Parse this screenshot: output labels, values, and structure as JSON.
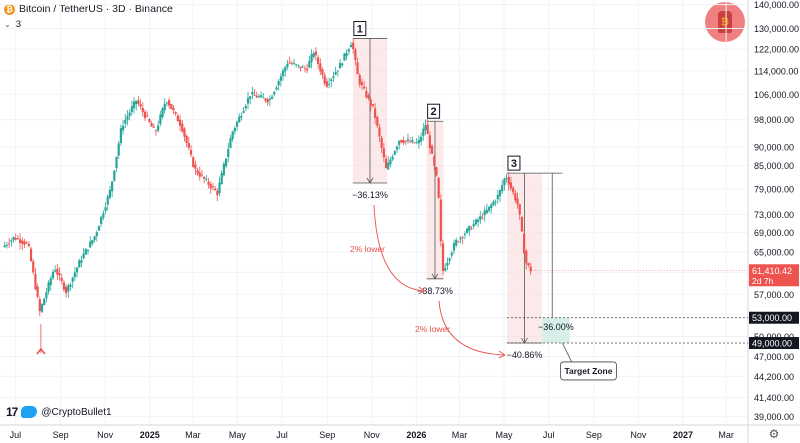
{
  "header": {
    "symbol_icon": "bitcoin-icon",
    "title": "Bitcoin / TetherUS · 3D · Binance",
    "indicator_count": "3"
  },
  "author": {
    "avatar_icon": "bitcoin-mascot-icon",
    "credit_handle": "@CryptoBullet1",
    "logo_icon": "tradingview-logo-icon",
    "social_icon": "twitter-icon"
  },
  "chart_data": {
    "type": "candlestick",
    "y_axis": {
      "scale": "log",
      "range": [
        38000,
        142000
      ],
      "ticks": [
        "140,000.00",
        "130,000.00",
        "122,000.00",
        "114,000.00",
        "106,000.00",
        "98,000.00",
        "90,000.00",
        "85,000.00",
        "79,000.00",
        "73,000.00",
        "69,000.00",
        "65,000.00",
        "61,000.00",
        "57,000.00",
        "53,000.00",
        "50,000.00",
        "47,000.00",
        "44,200.00",
        "41,400.00",
        "39,000.00"
      ]
    },
    "x_axis": {
      "range": [
        "2024-06-10",
        "2027-03-31"
      ],
      "ticks": [
        {
          "label": "Jul",
          "date": "2024-07-01"
        },
        {
          "label": "Sep",
          "date": "2024-09-01"
        },
        {
          "label": "Nov",
          "date": "2024-11-01"
        },
        {
          "label": "2025",
          "date": "2025-01-01"
        },
        {
          "label": "Mar",
          "date": "2025-03-01"
        },
        {
          "label": "May",
          "date": "2025-05-01"
        },
        {
          "label": "Jul",
          "date": "2025-07-01"
        },
        {
          "label": "Sep",
          "date": "2025-09-01"
        },
        {
          "label": "Nov",
          "date": "2025-11-01"
        },
        {
          "label": "2026",
          "date": "2026-01-01"
        },
        {
          "label": "Mar",
          "date": "2026-03-01"
        },
        {
          "label": "May",
          "date": "2026-05-01"
        },
        {
          "label": "Jul",
          "date": "2026-07-01"
        },
        {
          "label": "Sep",
          "date": "2026-09-01"
        },
        {
          "label": "Nov",
          "date": "2026-11-01"
        },
        {
          "label": "2027",
          "date": "2027-01-01"
        },
        {
          "label": "Mar",
          "date": "2027-03-01"
        }
      ]
    },
    "price_path": [
      {
        "date": "2024-06-15",
        "price": 66000
      },
      {
        "date": "2024-07-01",
        "price": 68000
      },
      {
        "date": "2024-07-20",
        "price": 66500
      },
      {
        "date": "2024-08-05",
        "price": 54000
      },
      {
        "date": "2024-08-25",
        "price": 62000
      },
      {
        "date": "2024-09-10",
        "price": 57500
      },
      {
        "date": "2024-09-30",
        "price": 63500
      },
      {
        "date": "2024-10-20",
        "price": 68500
      },
      {
        "date": "2024-11-10",
        "price": 79000
      },
      {
        "date": "2024-11-25",
        "price": 96000
      },
      {
        "date": "2024-12-15",
        "price": 104000
      },
      {
        "date": "2025-01-10",
        "price": 94000
      },
      {
        "date": "2025-01-25",
        "price": 104500
      },
      {
        "date": "2025-02-15",
        "price": 96000
      },
      {
        "date": "2025-03-05",
        "price": 84000
      },
      {
        "date": "2025-04-05",
        "price": 78000
      },
      {
        "date": "2025-04-25",
        "price": 94000
      },
      {
        "date": "2025-05-20",
        "price": 106000
      },
      {
        "date": "2025-06-15",
        "price": 104000
      },
      {
        "date": "2025-07-10",
        "price": 117000
      },
      {
        "date": "2025-08-05",
        "price": 114500
      },
      {
        "date": "2025-08-15",
        "price": 121000
      },
      {
        "date": "2025-09-01",
        "price": 109000
      },
      {
        "date": "2025-09-20",
        "price": 116000
      },
      {
        "date": "2025-10-06",
        "price": 125000
      },
      {
        "date": "2025-10-15",
        "price": 111000
      },
      {
        "date": "2025-11-05",
        "price": 101000
      },
      {
        "date": "2025-11-22",
        "price": 84000
      },
      {
        "date": "2025-12-10",
        "price": 92000
      },
      {
        "date": "2026-01-05",
        "price": 91000
      },
      {
        "date": "2026-01-15",
        "price": 96500
      },
      {
        "date": "2026-02-01",
        "price": 80000
      },
      {
        "date": "2026-02-07",
        "price": 61000
      },
      {
        "date": "2026-02-25",
        "price": 67000
      },
      {
        "date": "2026-03-20",
        "price": 70500
      },
      {
        "date": "2026-04-10",
        "price": 74000
      },
      {
        "date": "2026-04-25",
        "price": 77500
      },
      {
        "date": "2026-05-05",
        "price": 82500
      },
      {
        "date": "2026-05-22",
        "price": 75000
      },
      {
        "date": "2026-06-01",
        "price": 63000
      },
      {
        "date": "2026-06-08",
        "price": 61410
      }
    ],
    "last_price": {
      "value": 61410.42,
      "label": "61,410.42",
      "countdown": "2d 7h"
    },
    "swing_low_marker": {
      "date": "2024-08-05",
      "price": 52000,
      "icon": "arrow-up-icon"
    },
    "drawdowns": [
      {
        "label": "1",
        "pct": "−36.13%",
        "from_date": "2025-10-06",
        "to_date": "2025-11-22",
        "high": 126000,
        "low": 80500
      },
      {
        "label": "2",
        "pct": "−38.73%",
        "from_date": "2026-01-15",
        "to_date": "2026-02-07",
        "high": 97500,
        "low": 59800
      },
      {
        "label": "3",
        "pct": "−40.86%",
        "from_date": "2026-05-05",
        "to_date": "2026-06-22",
        "high": 83000,
        "low": 49000
      }
    ],
    "secondary_drawdown": {
      "pct": "−36.00%",
      "from_date": "2026-06-22",
      "to_date": "2026-07-20",
      "high": 83000,
      "low": 53000
    },
    "annotations": [
      {
        "text": "2% lower",
        "from": "1",
        "to": "2"
      },
      {
        "text": "2% lower",
        "from": "2",
        "to": "3"
      }
    ],
    "target_zone": {
      "label": "Target Zone",
      "low": 49000,
      "high": 53000,
      "low_label": "49,000.00",
      "high_label": "53,000.00"
    },
    "colors": {
      "up": "#26a69a",
      "down": "#ef5350",
      "range_fill": "#f9d9d9",
      "range_border": "#f5b5b5",
      "target_fill": "#d7efe8",
      "arrow": "#e8504a",
      "grid": "#f0f3fa"
    }
  }
}
